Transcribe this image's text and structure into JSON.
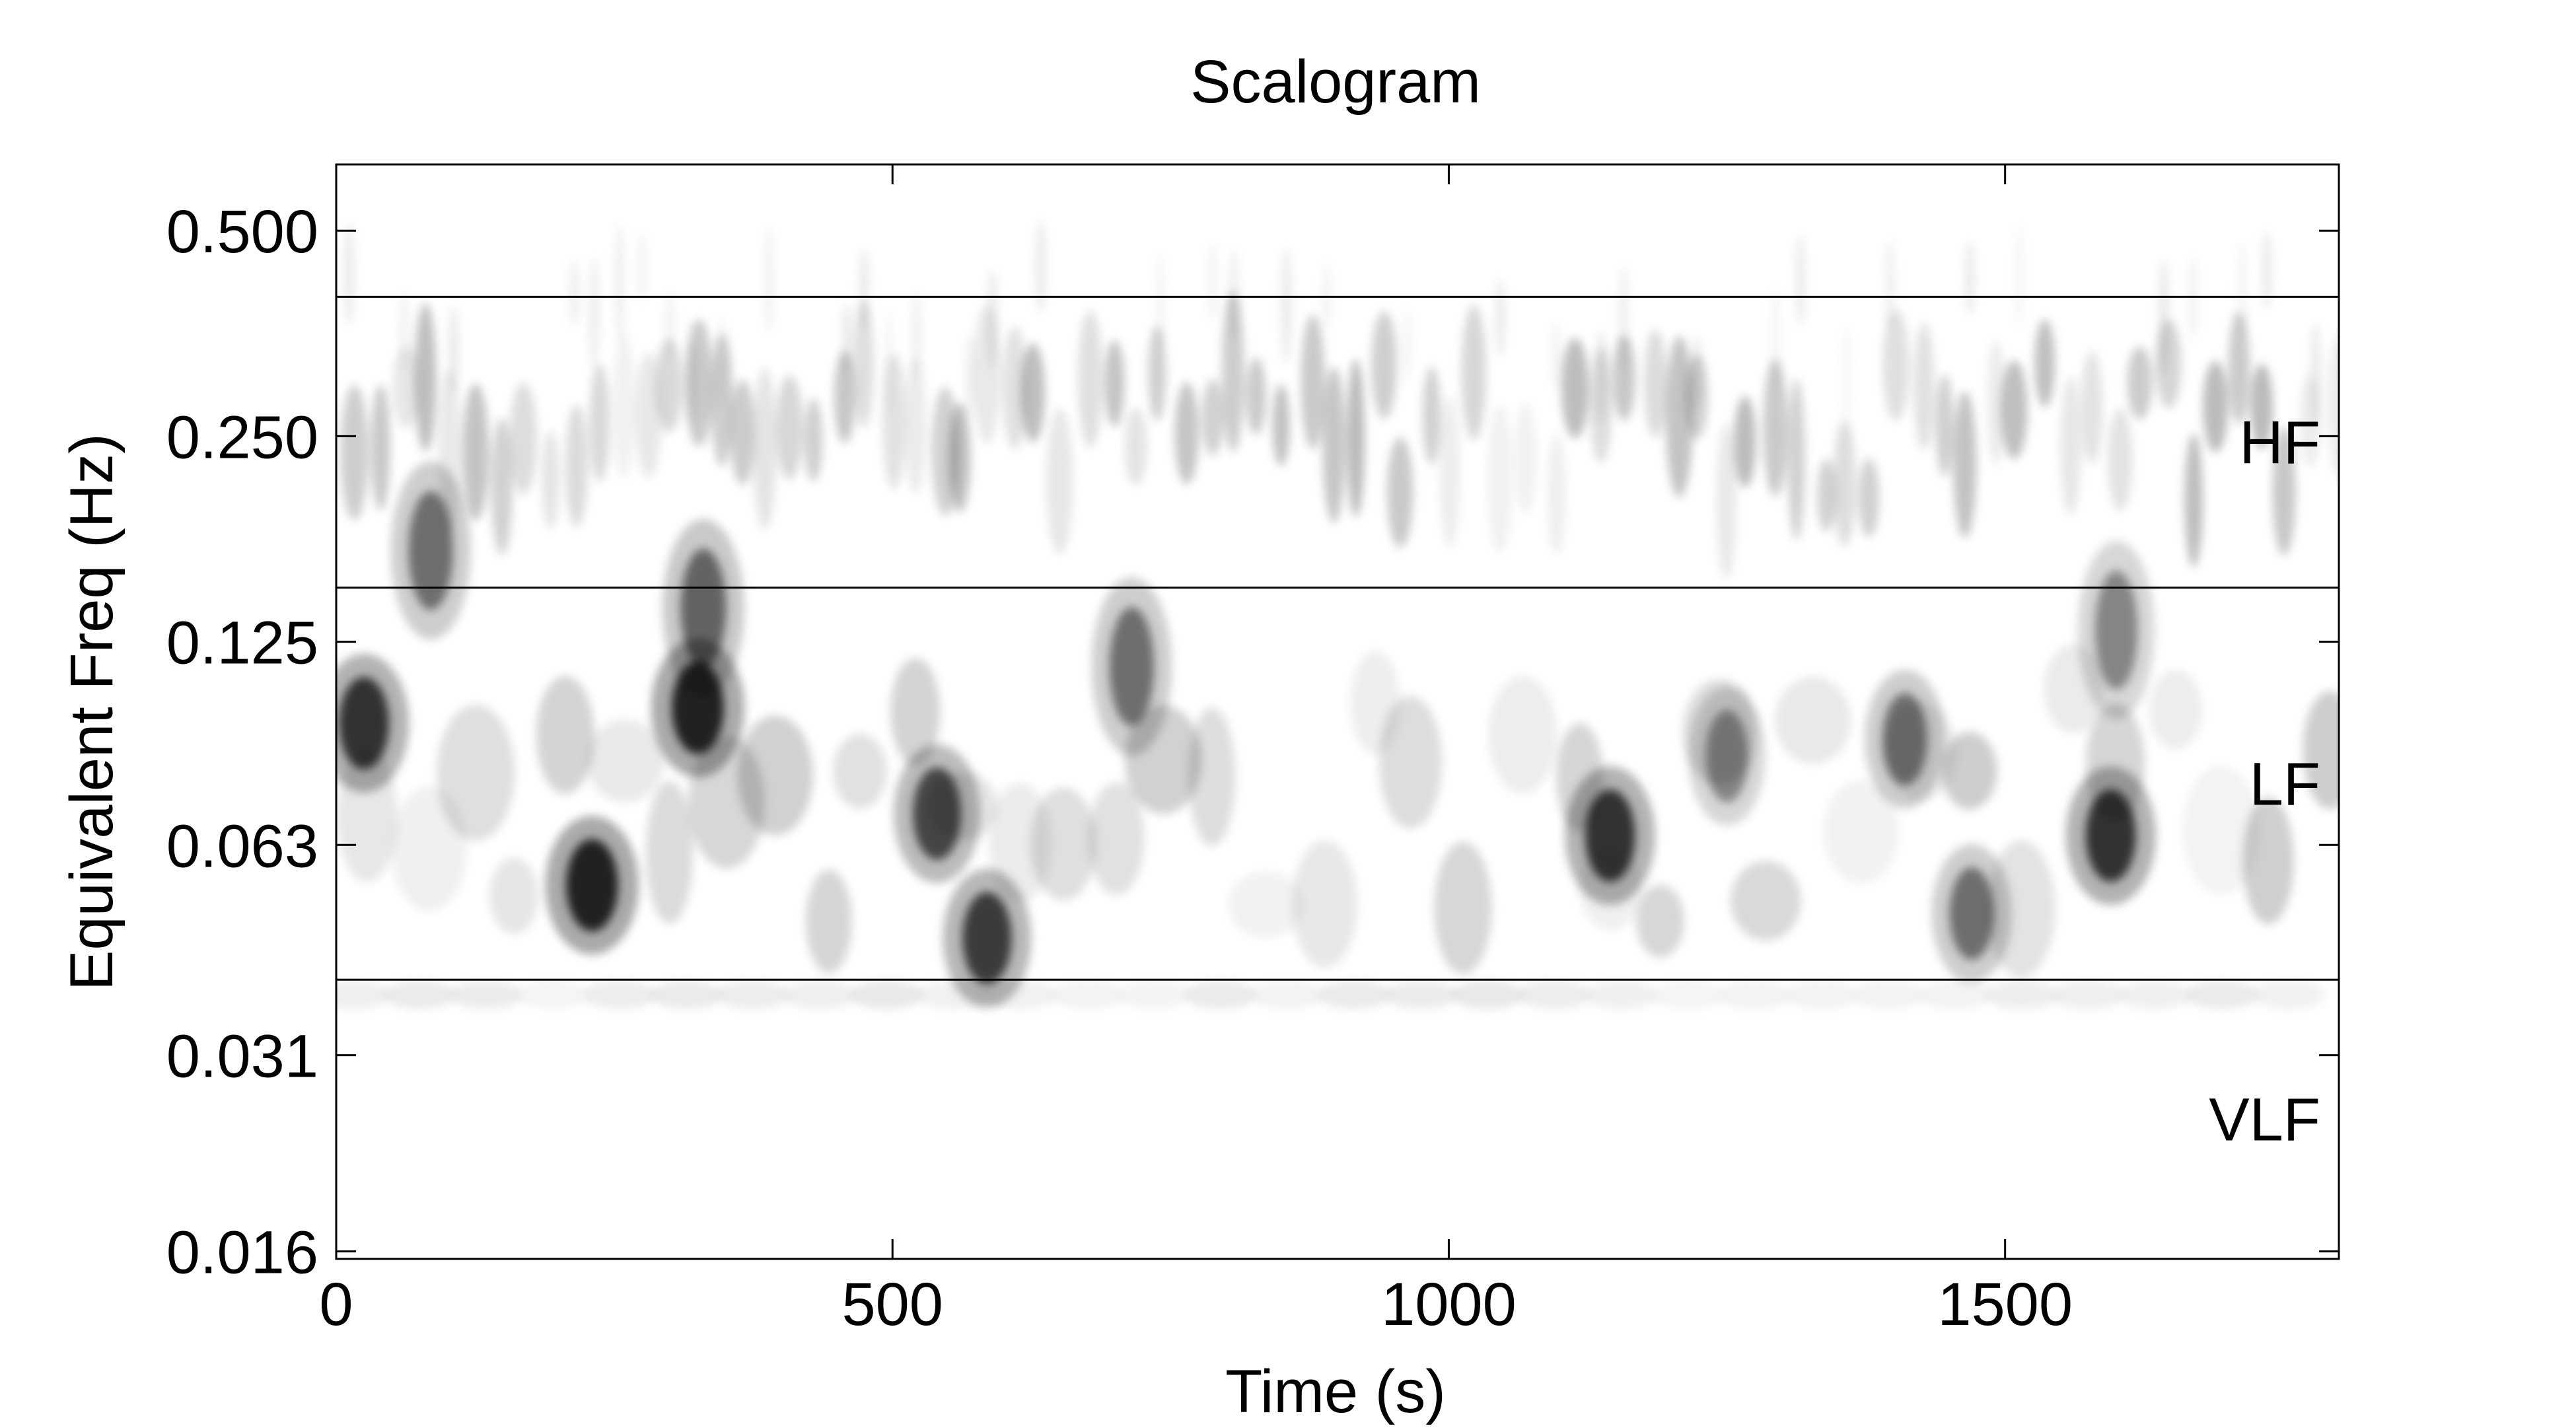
{
  "chart_data": {
    "type": "heatmap",
    "title": "Scalogram",
    "xlabel": "Time (s)",
    "ylabel": "Equivalent Freq (Hz)",
    "xlim": [
      0,
      1800
    ],
    "ylim": [
      0.0156,
      0.625
    ],
    "yscale": "log2",
    "xticks": [
      0,
      500,
      1000,
      1500
    ],
    "xtick_labels": [
      "0",
      "500",
      "1000",
      "1500"
    ],
    "yticks": [
      0.016,
      0.031,
      0.063,
      0.125,
      0.25,
      0.5
    ],
    "ytick_labels": [
      "0.016",
      "0.031",
      "0.063",
      "0.125",
      "0.250",
      "0.500"
    ],
    "colormap": "gray (white = low, black = high)",
    "grid": false,
    "band_boundaries_hz": [
      0.04,
      0.15,
      0.4
    ],
    "bands": [
      {
        "label": "HF",
        "range_hz": [
          0.15,
          0.4
        ]
      },
      {
        "label": "LF",
        "range_hz": [
          0.04,
          0.15
        ]
      },
      {
        "label": "VLF",
        "range_hz": [
          0.0156,
          0.04
        ]
      }
    ],
    "intensity_features": [
      {
        "time_s": 25,
        "freq_hz": 0.095,
        "level": 0.85
      },
      {
        "time_s": 85,
        "freq_hz": 0.17,
        "level": 0.55
      },
      {
        "time_s": 230,
        "freq_hz": 0.055,
        "level": 0.95
      },
      {
        "time_s": 325,
        "freq_hz": 0.1,
        "level": 0.95
      },
      {
        "time_s": 330,
        "freq_hz": 0.14,
        "level": 0.6
      },
      {
        "time_s": 540,
        "freq_hz": 0.07,
        "level": 0.75
      },
      {
        "time_s": 585,
        "freq_hz": 0.046,
        "level": 0.8
      },
      {
        "time_s": 715,
        "freq_hz": 0.115,
        "level": 0.55
      },
      {
        "time_s": 1145,
        "freq_hz": 0.065,
        "level": 0.85
      },
      {
        "time_s": 1250,
        "freq_hz": 0.085,
        "level": 0.45
      },
      {
        "time_s": 1410,
        "freq_hz": 0.09,
        "level": 0.55
      },
      {
        "time_s": 1470,
        "freq_hz": 0.05,
        "level": 0.55
      },
      {
        "time_s": 1595,
        "freq_hz": 0.065,
        "level": 0.85
      },
      {
        "time_s": 1600,
        "freq_hz": 0.13,
        "level": 0.45
      }
    ]
  }
}
